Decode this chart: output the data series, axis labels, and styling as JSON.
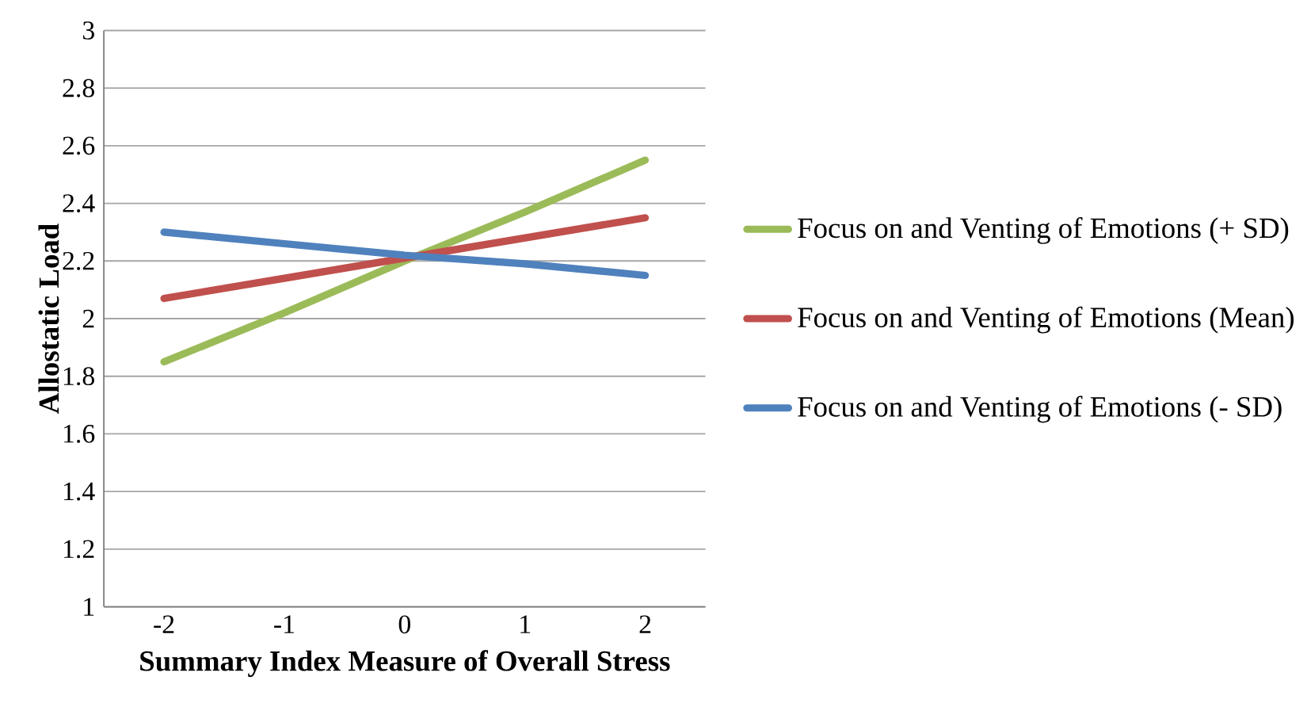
{
  "chart_data": {
    "type": "line",
    "xlabel": "Summary Index Measure of Overall Stress",
    "ylabel": "Allostatic Load",
    "categories": [
      "-2",
      "-1",
      "0",
      "1",
      "2"
    ],
    "series": [
      {
        "name": "Focus on and Venting of Emotions (+ SD)",
        "color": "#9bbb59",
        "values": [
          1.85,
          2.02,
          2.2,
          2.37,
          2.55
        ]
      },
      {
        "name": "Focus on and Venting of Emotions (Mean)",
        "color": "#c0504d",
        "values": [
          2.07,
          2.14,
          2.21,
          2.28,
          2.35
        ]
      },
      {
        "name": "Focus on and Venting of Emotions (- SD)",
        "color": "#4f81bd",
        "values": [
          2.3,
          2.26,
          2.22,
          2.19,
          2.15
        ]
      }
    ],
    "ylim": [
      1,
      3
    ],
    "yticks": [
      1,
      1.2,
      1.4,
      1.6,
      1.8,
      2,
      2.2,
      2.4,
      2.6,
      2.8,
      3
    ],
    "grid": "y",
    "legend": "right",
    "marker": "none",
    "line_style": "solid"
  }
}
